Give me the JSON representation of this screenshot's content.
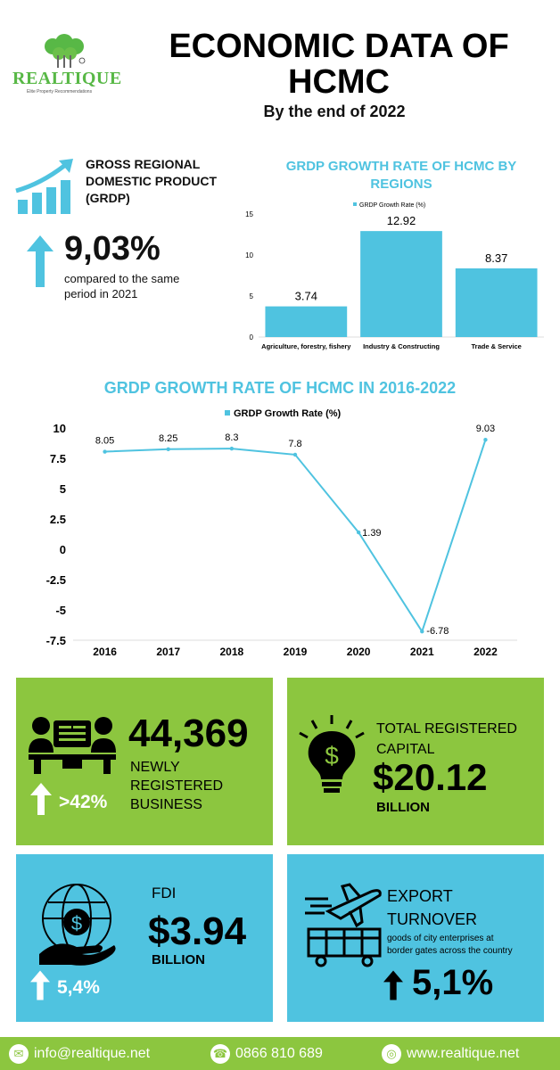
{
  "header": {
    "brand": "REALTIQUE",
    "brand_tagline": "Elite Property Recommendations",
    "title_line1": "ECONOMIC DATA OF",
    "title_line2": "HCMC",
    "subtitle": "By the end of 2022"
  },
  "grdp": {
    "label": "GROSS REGIONAL DOMESTIC PRODUCT (GRDP)",
    "value": "9,03%",
    "note": "compared to the same period in 2021",
    "icon": "bar-growth-icon"
  },
  "chart_data": [
    {
      "type": "bar",
      "title": "GRDP GROWTH RATE OF HCMC BY REGIONS",
      "legend": "GRDP Growth Rate (%)",
      "legend_position": "top-center",
      "categories": [
        "Agriculture, forestry, fishery",
        "Industry & Constructing",
        "Trade & Service"
      ],
      "values": [
        3.74,
        12.92,
        8.37
      ],
      "value_labels": [
        "3.74",
        "12.92",
        "8.37"
      ],
      "yticks": [
        "0",
        "5",
        "10",
        "15"
      ],
      "ylim": [
        0,
        15
      ],
      "grid": false,
      "color": "#4fc3e0"
    },
    {
      "type": "line",
      "title": "GRDP GROWTH RATE OF HCMC IN 2016-2022",
      "legend": "GRDP Growth Rate (%)",
      "legend_position": "top-center",
      "x": [
        "2016",
        "2017",
        "2018",
        "2019",
        "2020",
        "2021",
        "2022"
      ],
      "values": [
        8.05,
        8.25,
        8.3,
        7.8,
        1.39,
        -6.78,
        9.03
      ],
      "value_labels": [
        "8.05",
        "8.25",
        "8.3",
        "7.8",
        "1.39",
        "-6.78",
        "9.03"
      ],
      "yticks": [
        "10",
        "7.5",
        "5",
        "2.5",
        "0",
        "-2.5",
        "-5",
        "-7.5"
      ],
      "ylim": [
        -7.5,
        10
      ],
      "grid": false,
      "color": "#4fc3e0"
    }
  ],
  "stats": {
    "business": {
      "value": "44,369",
      "label_line1": "NEWLY",
      "label_line2": "REGISTERED",
      "label_line3": "BUSINESS",
      "growth": ">42%",
      "icon": "meeting-icon"
    },
    "capital": {
      "label_line1": "TOTAL REGISTERED",
      "label_line2": "CAPITAL",
      "value": "$20.12",
      "unit": "BILLION",
      "icon": "lightbulb-dollar-icon"
    },
    "fdi": {
      "label": "FDI",
      "value": "$3.94",
      "unit": "BILLION",
      "growth": "5,4%",
      "icon": "globe-hand-dollar-icon"
    },
    "export": {
      "label_line1": "EXPORT",
      "label_line2": "TURNOVER",
      "note_line1": "goods of city enterprises at",
      "note_line2": "border gates across the country",
      "growth": "5,1%",
      "icon": "plane-truck-icon"
    }
  },
  "footer": {
    "email": "info@realtique.net",
    "phone": "0866 810 689",
    "website": "www.realtique.net"
  },
  "colors": {
    "green": "#8cc63f",
    "blue": "#4fc3e0"
  }
}
